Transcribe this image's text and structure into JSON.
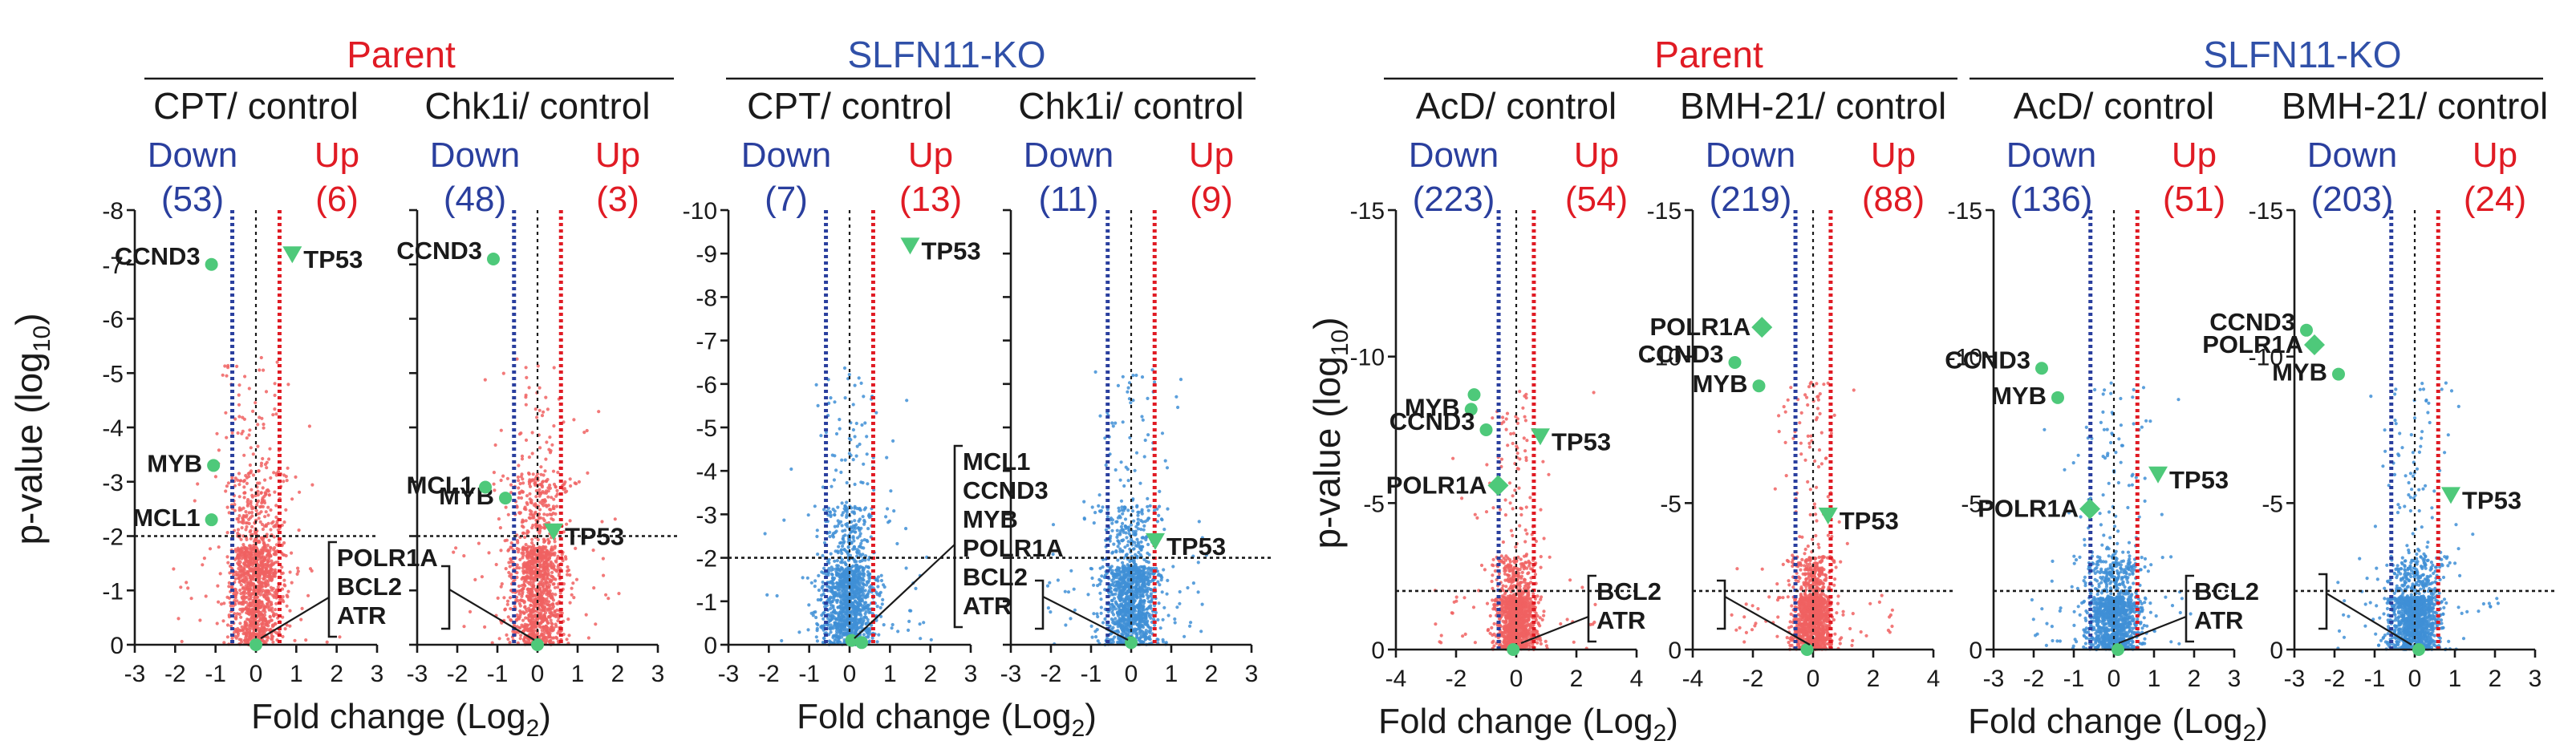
{
  "chart_data": {
    "type": "scatter",
    "groups": [
      {
        "label": "Parent",
        "color": "#e01b24",
        "panels": [
          0,
          1
        ]
      },
      {
        "label": "SLFN11-KO",
        "color": "#3050a8",
        "panels": [
          2,
          3
        ]
      },
      {
        "label": "Parent",
        "color": "#e01b24",
        "panels": [
          4,
          5
        ]
      },
      {
        "label": "SLFN11-KO",
        "color": "#3050a8",
        "panels": [
          6,
          7
        ]
      }
    ],
    "xlabel_main": "Fold change (Log",
    "xlabel_sub": "2",
    "xlabel_end": ")",
    "ylabel_main": "p-value (log",
    "ylabel_sub": "10",
    "ylabel_end": ")",
    "down_label": "Down",
    "up_label": "Up",
    "colors": {
      "red_points": "#f06262",
      "blue_points": "#3f8fd6",
      "highlight": "#4ec97a",
      "down_line": "#2a3f9e",
      "up_line": "#e01b24",
      "down_text": "#2a3f9e",
      "up_text": "#e01b24"
    },
    "panels": [
      {
        "condition": "CPT/ control",
        "down": "(53)",
        "up": "(6)",
        "xlim": [
          -3,
          3
        ],
        "xticks": [
          "-3",
          "-2",
          "-1",
          "0",
          "1",
          "2",
          "3"
        ],
        "xtick_values": [
          -3,
          -2,
          -1,
          0,
          1,
          2,
          3
        ],
        "ylim": [
          0,
          8
        ],
        "yticks": [
          "0",
          "-1",
          "-2",
          "-3",
          "-4",
          "-5",
          "-6",
          "-7",
          "-8"
        ],
        "ytick_values": [
          0,
          1,
          2,
          3,
          4,
          5,
          6,
          7,
          8
        ],
        "threshold_fc": 0.585,
        "threshold_p": 2,
        "point_color": "red",
        "genes": [
          {
            "name": "CCND3",
            "fc": -1.1,
            "p": 7.0,
            "shape": "circle"
          },
          {
            "name": "TP53",
            "fc": 0.9,
            "p": 7.2,
            "shape": "triangle"
          },
          {
            "name": "MYB",
            "fc": -1.05,
            "p": 3.3,
            "shape": "circle"
          },
          {
            "name": "MCL1",
            "fc": -1.1,
            "p": 2.3,
            "shape": "circle"
          },
          {
            "name": "",
            "fc": 0.0,
            "p": 0.0,
            "shape": "circle"
          }
        ],
        "bracket_genes": [
          "POLR1A",
          "BCL2",
          "ATR"
        ]
      },
      {
        "condition": "Chk1i/ control",
        "down": "(48)",
        "up": "(3)",
        "xlim": [
          -3,
          3
        ],
        "xticks": [
          "-3",
          "-2",
          "-1",
          "0",
          "1",
          "2",
          "3"
        ],
        "xtick_values": [
          -3,
          -2,
          -1,
          0,
          1,
          2,
          3
        ],
        "ylim": [
          0,
          8
        ],
        "yticks": [],
        "ytick_values": [
          0,
          1,
          2,
          3,
          4,
          5,
          6,
          7,
          8
        ],
        "threshold_fc": 0.585,
        "threshold_p": 2,
        "point_color": "red",
        "genes": [
          {
            "name": "CCND3",
            "fc": -1.1,
            "p": 7.1,
            "shape": "circle"
          },
          {
            "name": "MYB",
            "fc": -0.8,
            "p": 2.7,
            "shape": "circle"
          },
          {
            "name": "MCL1",
            "fc": -1.3,
            "p": 2.9,
            "shape": "circle"
          },
          {
            "name": "TP53",
            "fc": 0.4,
            "p": 2.1,
            "shape": "triangle"
          },
          {
            "name": "",
            "fc": 0.0,
            "p": 0.0,
            "shape": "circle"
          }
        ],
        "bracket_genes": []
      },
      {
        "condition": "CPT/ control",
        "down": "(7)",
        "up": "(13)",
        "xlim": [
          -3,
          3
        ],
        "xticks": [
          "-3",
          "-2",
          "-1",
          "0",
          "1",
          "2",
          "3"
        ],
        "xtick_values": [
          -3,
          -2,
          -1,
          0,
          1,
          2,
          3
        ],
        "ylim": [
          0,
          10
        ],
        "yticks": [
          "0",
          "-1",
          "-2",
          "-3",
          "-4",
          "-5",
          "-6",
          "-7",
          "-8",
          "-9",
          "-10"
        ],
        "ytick_values": [
          0,
          1,
          2,
          3,
          4,
          5,
          6,
          7,
          8,
          9,
          10
        ],
        "threshold_fc": 0.585,
        "threshold_p": 2,
        "point_color": "blue",
        "genes": [
          {
            "name": "TP53",
            "fc": 1.5,
            "p": 9.2,
            "shape": "triangle"
          },
          {
            "name": "",
            "fc": 0.05,
            "p": 0.1,
            "shape": "circle"
          },
          {
            "name": "",
            "fc": 0.3,
            "p": 0.05,
            "shape": "circle"
          }
        ],
        "bracket_genes": [
          "MCL1",
          "CCND3",
          "MYB",
          "POLR1A",
          "BCL2",
          "ATR"
        ]
      },
      {
        "condition": "Chk1i/ control",
        "down": "(11)",
        "up": "(9)",
        "xlim": [
          -3,
          3
        ],
        "xticks": [
          "-3",
          "-2",
          "-1",
          "0",
          "1",
          "2",
          "3"
        ],
        "xtick_values": [
          -3,
          -2,
          -1,
          0,
          1,
          2,
          3
        ],
        "ylim": [
          0,
          10
        ],
        "yticks": [],
        "ytick_values": [
          0,
          1,
          2,
          3,
          4,
          5,
          6,
          7,
          8,
          9,
          10
        ],
        "threshold_fc": 0.585,
        "threshold_p": 2,
        "point_color": "blue",
        "genes": [
          {
            "name": "TP53",
            "fc": 0.6,
            "p": 2.4,
            "shape": "triangle"
          },
          {
            "name": "",
            "fc": 0.0,
            "p": 0.05,
            "shape": "circle"
          }
        ],
        "bracket_genes": []
      },
      {
        "condition": "AcD/ control",
        "down": "(223)",
        "up": "(54)",
        "xlim": [
          -4,
          4
        ],
        "xticks": [
          "-4",
          "-2",
          "0",
          "2",
          "4"
        ],
        "xtick_values": [
          -4,
          -2,
          0,
          2,
          4
        ],
        "ylim": [
          0,
          15
        ],
        "yticks": [
          "0",
          "-5",
          "-10",
          "-15"
        ],
        "ytick_values": [
          0,
          5,
          10,
          15
        ],
        "threshold_fc": 0.585,
        "threshold_p": 2,
        "point_color": "red",
        "genes": [
          {
            "name": "MYB",
            "fc": -1.5,
            "p": 8.2,
            "shape": "circle"
          },
          {
            "name": "",
            "fc": -1.4,
            "p": 8.7,
            "shape": "circle"
          },
          {
            "name": "TP53",
            "fc": 0.8,
            "p": 7.3,
            "shape": "triangle"
          },
          {
            "name": "CCND3",
            "fc": -1.0,
            "p": 7.5,
            "shape": "circle"
          },
          {
            "name": "POLR1A",
            "fc": -0.6,
            "p": 5.6,
            "shape": "diamond"
          },
          {
            "name": "",
            "fc": -0.1,
            "p": 0.0,
            "shape": "circle"
          }
        ],
        "bracket_genes": [
          "BCL2",
          "ATR"
        ]
      },
      {
        "condition": "BMH-21/ control",
        "down": "(219)",
        "up": "(88)",
        "xlim": [
          -4,
          4
        ],
        "xticks": [
          "-4",
          "-2",
          "0",
          "2",
          "4"
        ],
        "xtick_values": [
          -4,
          -2,
          0,
          2,
          4
        ],
        "ylim": [
          0,
          15
        ],
        "yticks": [
          "0",
          "-5",
          "-10",
          "-15"
        ],
        "ytick_values": [
          0,
          5,
          10,
          15
        ],
        "threshold_fc": 0.585,
        "threshold_p": 2,
        "point_color": "red",
        "genes": [
          {
            "name": "POLR1A",
            "fc": -1.7,
            "p": 11.0,
            "shape": "diamond"
          },
          {
            "name": "CCND3",
            "fc": -2.6,
            "p": 9.8,
            "shape": "circle"
          },
          {
            "name": "MYB",
            "fc": -1.8,
            "p": 9.0,
            "shape": "circle"
          },
          {
            "name": "TP53",
            "fc": 0.5,
            "p": 4.6,
            "shape": "triangle"
          },
          {
            "name": "",
            "fc": -0.2,
            "p": 0.0,
            "shape": "circle"
          }
        ],
        "bracket_genes": []
      },
      {
        "condition": "AcD/ control",
        "down": "(136)",
        "up": "(51)",
        "xlim": [
          -3,
          3
        ],
        "xticks": [
          "-3",
          "-2",
          "-1",
          "0",
          "1",
          "2",
          "3"
        ],
        "xtick_values": [
          -3,
          -2,
          -1,
          0,
          1,
          2,
          3
        ],
        "ylim": [
          0,
          15
        ],
        "yticks": [
          "0",
          "-5",
          "-10",
          "-15"
        ],
        "ytick_values": [
          0,
          5,
          10,
          15
        ],
        "threshold_fc": 0.585,
        "threshold_p": 2,
        "point_color": "blue",
        "genes": [
          {
            "name": "CCND3",
            "fc": -1.8,
            "p": 9.6,
            "shape": "circle"
          },
          {
            "name": "MYB",
            "fc": -1.4,
            "p": 8.6,
            "shape": "circle"
          },
          {
            "name": "TP53",
            "fc": 1.1,
            "p": 6.0,
            "shape": "triangle"
          },
          {
            "name": "POLR1A",
            "fc": -0.6,
            "p": 4.8,
            "shape": "diamond"
          },
          {
            "name": "",
            "fc": 0.1,
            "p": 0.0,
            "shape": "circle"
          }
        ],
        "bracket_genes": [
          "BCL2",
          "ATR"
        ]
      },
      {
        "condition": "BMH-21/ control",
        "down": "(203)",
        "up": "(24)",
        "xlim": [
          -3,
          3
        ],
        "xticks": [
          "-3",
          "-2",
          "-1",
          "0",
          "1",
          "2",
          "3"
        ],
        "xtick_values": [
          -3,
          -2,
          -1,
          0,
          1,
          2,
          3
        ],
        "ylim": [
          0,
          15
        ],
        "yticks": [
          "0",
          "-5",
          "-10",
          "-15"
        ],
        "ytick_values": [
          0,
          5,
          10,
          15
        ],
        "threshold_fc": 0.585,
        "threshold_p": 2,
        "point_color": "blue",
        "genes": [
          {
            "name": "CCND3",
            "fc": -2.7,
            "p": 10.9,
            "shape": "circle"
          },
          {
            "name": "POLR1A",
            "fc": -2.5,
            "p": 10.4,
            "shape": "diamond"
          },
          {
            "name": "MYB",
            "fc": -1.9,
            "p": 9.4,
            "shape": "circle"
          },
          {
            "name": "TP53",
            "fc": 0.9,
            "p": 5.3,
            "shape": "triangle"
          },
          {
            "name": "",
            "fc": 0.1,
            "p": 0.0,
            "shape": "circle"
          }
        ],
        "bracket_genes": []
      }
    ]
  }
}
